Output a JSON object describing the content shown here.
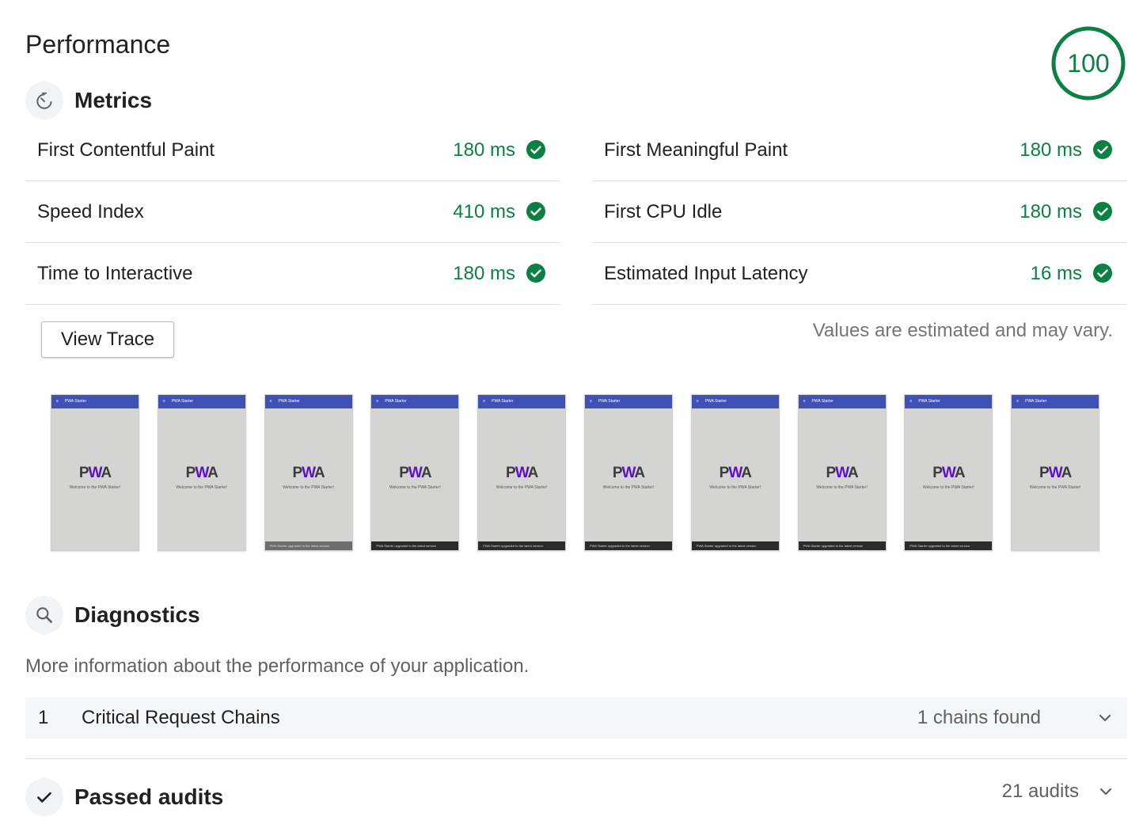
{
  "header": {
    "title": "Performance",
    "score": "100",
    "score_fraction": 1.0,
    "score_color": "#0b8043"
  },
  "metrics_section": {
    "title": "Metrics",
    "icon": "stopwatch-icon"
  },
  "metrics": {
    "left": [
      {
        "name": "First Contentful Paint",
        "value": "180 ms"
      },
      {
        "name": "Speed Index",
        "value": "410 ms"
      },
      {
        "name": "Time to Interactive",
        "value": "180 ms"
      }
    ],
    "right": [
      {
        "name": "First Meaningful Paint",
        "value": "180 ms"
      },
      {
        "name": "First CPU Idle",
        "value": "180 ms"
      },
      {
        "name": "Estimated Input Latency",
        "value": "16 ms"
      }
    ]
  },
  "actions": {
    "view_trace_label": "View Trace"
  },
  "disclaimer": "Values are estimated and may vary.",
  "filmstrip": {
    "app_title": "PWA Starter",
    "logo_p": "P",
    "logo_w": "W",
    "logo_a": "A",
    "welcome": "Welcome to the PWA Starter!",
    "toast": "PWA Starter upgraded to the latest version",
    "frames": [
      {
        "toast": "none"
      },
      {
        "toast": "none"
      },
      {
        "toast": "light"
      },
      {
        "toast": "dark"
      },
      {
        "toast": "dark"
      },
      {
        "toast": "dark"
      },
      {
        "toast": "dark"
      },
      {
        "toast": "dark"
      },
      {
        "toast": "dark"
      },
      {
        "toast": "none"
      }
    ]
  },
  "diagnostics": {
    "title": "Diagnostics",
    "icon": "search-icon",
    "description": "More information about the performance of your application.",
    "items": [
      {
        "number": "1",
        "title": "Critical Request Chains",
        "value": "1 chains found"
      }
    ]
  },
  "passed": {
    "title": "Passed audits",
    "icon": "checkmark-icon",
    "count": "21 audits"
  },
  "colors": {
    "pass": "#0b8043",
    "app_bar": "#3f51b5",
    "logo_w": "#5a0fc8"
  }
}
